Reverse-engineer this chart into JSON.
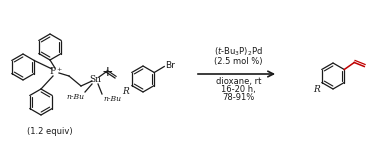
{
  "bg_color": "#ffffff",
  "line_color": "#1a1a1a",
  "red_color": "#c00000",
  "figsize": [
    3.92,
    1.44
  ],
  "dpi": 100,
  "reaction_text_line1": "$(t$-Bu$_3$P)$_2$Pd",
  "reaction_text_line2": "(2.5 mol %)",
  "reaction_text_line3": "dioxane, rt",
  "reaction_text_line4": "16-20 h,",
  "reaction_text_line5": "78-91%",
  "reagent_label": "(1.2 equiv)",
  "plus_symbol": "+",
  "sn_label": "Sn",
  "nbu_label1": "n-Bu",
  "nbu_label2": "n-Bu",
  "br_label": "Br",
  "r_label1": "R",
  "r_label2": "R",
  "pplus_label": "P$^+$"
}
